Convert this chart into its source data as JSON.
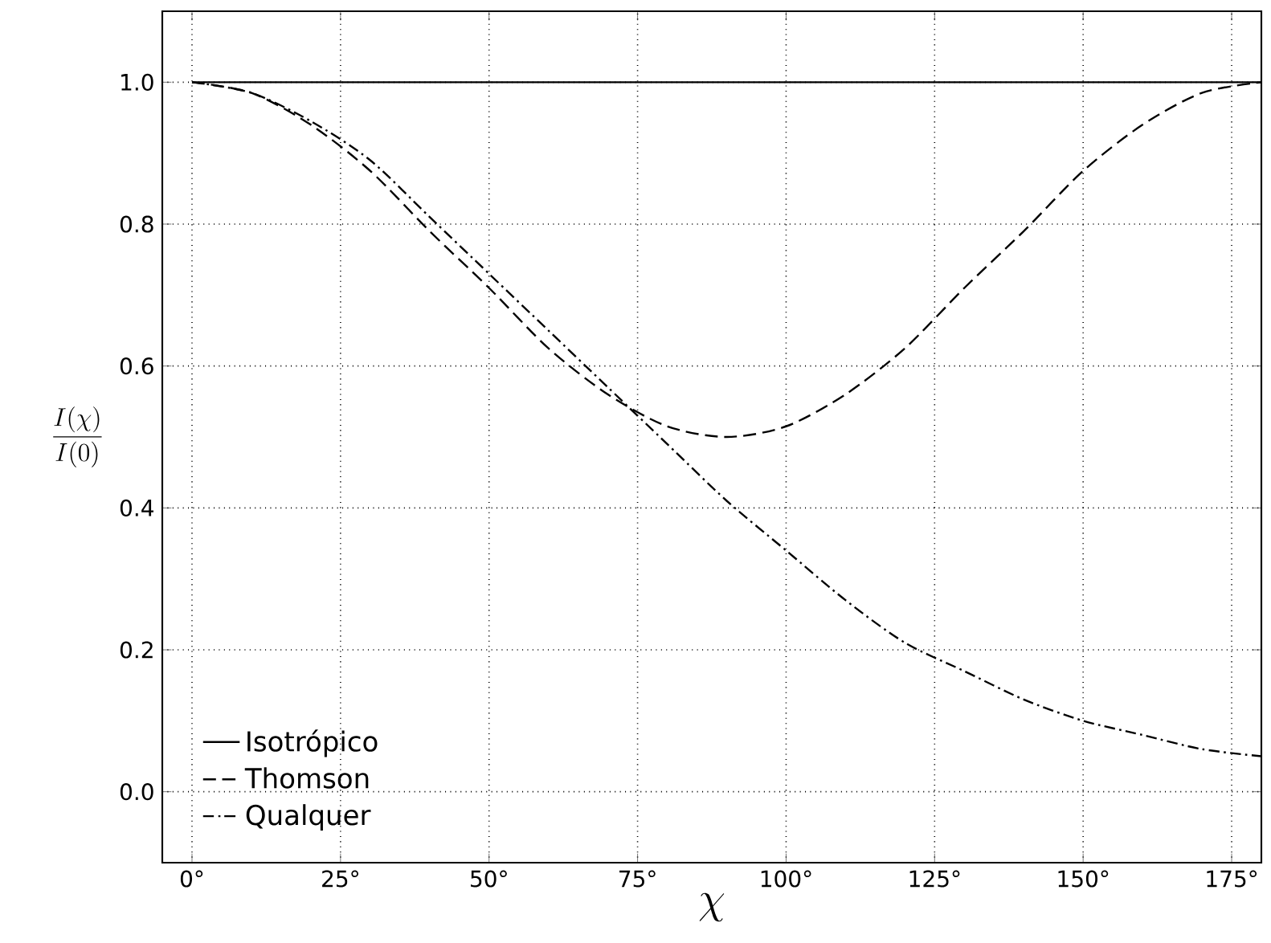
{
  "chart_data": {
    "type": "line",
    "xlabel": "\\chi",
    "ylabel": "\\frac{I(\\chi)}{I(0)}",
    "xlim": [
      -5,
      180
    ],
    "ylim": [
      -0.1,
      1.1
    ],
    "xticks": [
      {
        "value": 0,
        "label": "0°"
      },
      {
        "value": 25,
        "label": "25°"
      },
      {
        "value": 50,
        "label": "50°"
      },
      {
        "value": 75,
        "label": "75°"
      },
      {
        "value": 100,
        "label": "100°"
      },
      {
        "value": 125,
        "label": "125°"
      },
      {
        "value": 150,
        "label": "150°"
      },
      {
        "value": 175,
        "label": "175°"
      }
    ],
    "yticks": [
      {
        "value": 0,
        "label": "0.0"
      },
      {
        "value": 0.2,
        "label": "0.2"
      },
      {
        "value": 0.4,
        "label": "0.4"
      },
      {
        "value": 0.6,
        "label": "0.6"
      },
      {
        "value": 0.8,
        "label": "0.8"
      },
      {
        "value": 1,
        "label": "1.0"
      }
    ],
    "grid": true,
    "legend": "bottom left",
    "marker": "none",
    "x": [
      0,
      10,
      20,
      30,
      40,
      50,
      60,
      70,
      80,
      90,
      100,
      110,
      120,
      130,
      140,
      150,
      160,
      170,
      180
    ],
    "series": [
      {
        "name": "Isotrópico",
        "color": "#000000",
        "line_style": "solid",
        "values": [
          1,
          1,
          1,
          1,
          1,
          1,
          1,
          1,
          1,
          1,
          1,
          1,
          1,
          1,
          1,
          1,
          1,
          1,
          1
        ]
      },
      {
        "name": "Thomson",
        "color": "#000000",
        "line_style": "dashed",
        "values": [
          1,
          0.985,
          0.94,
          0.875,
          0.79,
          0.71,
          0.625,
          0.56,
          0.515,
          0.5,
          0.515,
          0.56,
          0.625,
          0.71,
          0.79,
          0.875,
          0.94,
          0.985,
          1
        ]
      },
      {
        "name": "Qualquer",
        "color": "#000000",
        "line_style": "dashdotted",
        "values": [
          1,
          0.985,
          0.945,
          0.89,
          0.81,
          0.73,
          0.65,
          0.57,
          0.49,
          0.41,
          0.34,
          0.27,
          0.21,
          0.17,
          0.13,
          0.1,
          0.08,
          0.06,
          0.05
        ]
      }
    ]
  }
}
